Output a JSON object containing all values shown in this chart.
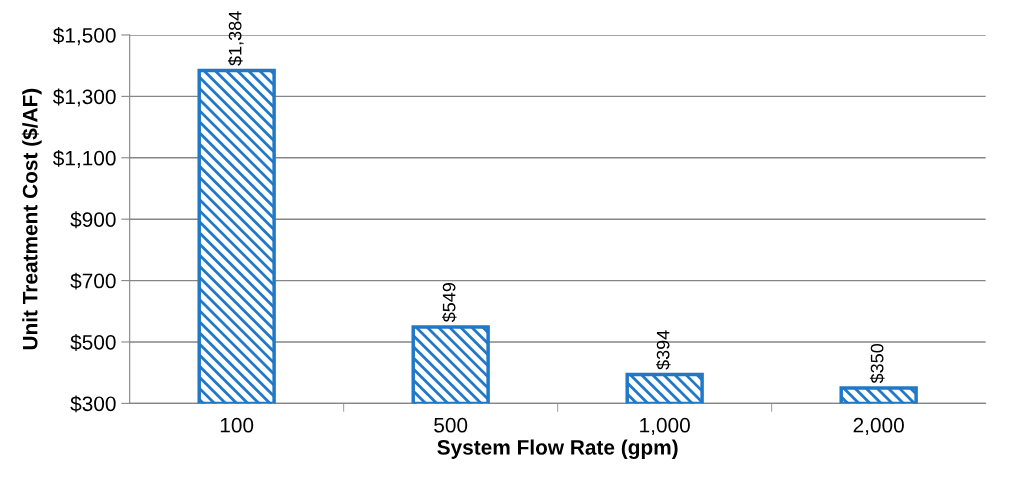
{
  "chart_data": {
    "type": "bar",
    "xlabel": "System Flow Rate (gpm)",
    "ylabel": "Unit Treatment Cost ($/AF)",
    "categories": [
      "100",
      "500",
      "1,000",
      "2,000"
    ],
    "values": [
      1384,
      549,
      394,
      350
    ],
    "value_labels": [
      "$1,384",
      "$549",
      "$394",
      "$350"
    ],
    "color": "#1f78c8",
    "ylim": [
      300,
      1500
    ],
    "yticks": [
      {
        "value": 300,
        "label": "$300"
      },
      {
        "value": 500,
        "label": "$500"
      },
      {
        "value": 700,
        "label": "$700"
      },
      {
        "value": 900,
        "label": "$900"
      },
      {
        "value": 1100,
        "label": "$1,100"
      },
      {
        "value": 1300,
        "label": "$1,300"
      },
      {
        "value": 1500,
        "label": "$1,500"
      }
    ],
    "grid": "y"
  }
}
